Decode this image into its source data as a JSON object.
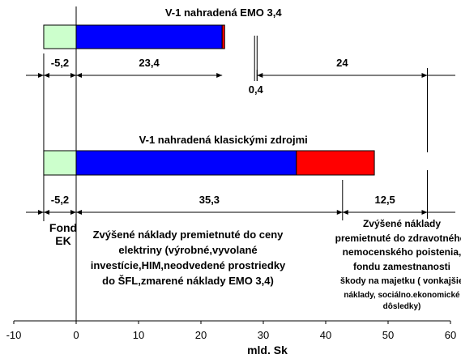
{
  "chart_data": {
    "type": "bar",
    "orientation": "horizontal",
    "xlabel": "mld. Sk",
    "xlim": [
      -10,
      60
    ],
    "xticks": [
      -10,
      0,
      10,
      20,
      30,
      40,
      50,
      60
    ],
    "grid": false,
    "colors": {
      "fond_ek": "#ccffcc",
      "costs": "#0000ff",
      "extra": "#ff0000",
      "axis": "#000000"
    },
    "bars": [
      {
        "title": "V-1 nahradená EMO 3,4",
        "segments": [
          {
            "start": -5.2,
            "end": 0,
            "color": "#ccffcc"
          },
          {
            "start": 0,
            "end": 23.4,
            "color": "#0000ff"
          },
          {
            "start": 23.4,
            "end": 23.8,
            "color": "#ff0000"
          }
        ],
        "dimensions": [
          {
            "from": -5.2,
            "to": 0,
            "label": "-5,2"
          },
          {
            "from": 0,
            "to": 23.4,
            "label": "23,4"
          },
          {
            "from": 28.6,
            "to": 29.0,
            "label": "0,4"
          },
          {
            "from": 29.0,
            "to": 56.3,
            "label": "24"
          }
        ]
      },
      {
        "title": "V-1 nahradená klasickými zdrojmi",
        "segments": [
          {
            "start": -5.2,
            "end": 0,
            "color": "#ccffcc"
          },
          {
            "start": 0,
            "end": 35.3,
            "color": "#0000ff"
          },
          {
            "start": 35.3,
            "end": 47.8,
            "color": "#ff0000"
          }
        ],
        "dimensions": [
          {
            "from": -5.2,
            "to": 0,
            "label": "-5,2"
          },
          {
            "from": 0,
            "to": 42.7,
            "label": "35,3"
          },
          {
            "from": 42.7,
            "to": 56.3,
            "label": "12,5"
          }
        ]
      }
    ],
    "annotations": {
      "fond": [
        "Fond",
        "EK"
      ],
      "costs_text": [
        "Zvýšené náklady premietnuté do ceny",
        "elektriny (výrobné,vyvolané",
        "investície,HIM,neodvedené prostriedky",
        "do ŠFL,zmarené náklady EMO 3,4)"
      ],
      "insurance_text": [
        "Zvýšené náklady",
        "premietnuté do zdravotného,",
        "nemocenského poistenia,",
        "fondu zamestnanosti",
        "škody na majetku ( vonkajšie",
        "náklady, sociálno.ekonomické",
        "dôsledky)"
      ]
    }
  }
}
